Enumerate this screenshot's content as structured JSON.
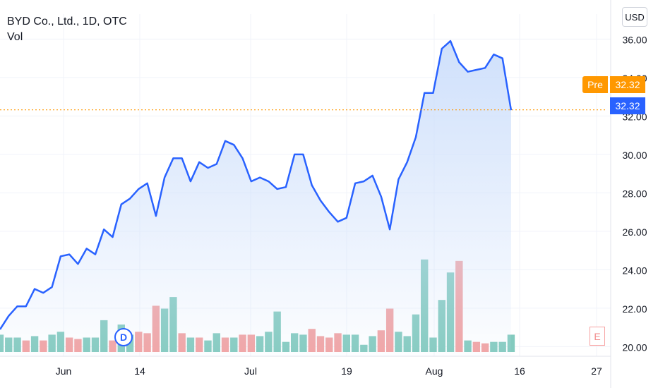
{
  "legend": {
    "title": "BYD Co., Ltd., 1D, OTC",
    "volume_label": "Vol"
  },
  "currency": "USD",
  "price_tags": {
    "pre_label": "Pre",
    "pre_value": "32.32",
    "last_value": "32.32"
  },
  "markers": {
    "dividend": "D",
    "earnings": "E"
  },
  "colors": {
    "line": "#2962ff",
    "area_top": "#cfe0fb",
    "vol_up": "#84cbbf",
    "vol_down": "#f2a3a3",
    "pre_line": "#ff9800",
    "grid": "#f0f3fa"
  },
  "chart_data": {
    "type": "area",
    "title": "BYD Co., Ltd., 1D, OTC",
    "y_axis": {
      "ticks": [
        "20.00",
        "22.00",
        "24.00",
        "26.00",
        "28.00",
        "30.00",
        "32.00",
        "34.00",
        "36.00"
      ],
      "range": [
        19.5,
        37.3
      ],
      "position": "right"
    },
    "x_axis": {
      "ticks": [
        "Jun",
        "14",
        "Jul",
        "19",
        "Aug",
        "16",
        "27"
      ]
    },
    "grid": true,
    "price_series": [
      20.9,
      21.6,
      22.1,
      22.1,
      23.0,
      22.8,
      23.1,
      24.7,
      24.8,
      24.3,
      25.1,
      24.8,
      26.1,
      25.7,
      27.4,
      27.7,
      28.2,
      28.5,
      26.8,
      28.8,
      29.8,
      29.8,
      28.6,
      29.6,
      29.3,
      29.5,
      30.7,
      30.5,
      29.8,
      28.6,
      28.8,
      28.6,
      28.2,
      28.3,
      30.0,
      30.0,
      28.4,
      27.6,
      27.0,
      26.5,
      26.7,
      28.5,
      28.6,
      28.9,
      27.8,
      26.1,
      28.7,
      29.6,
      30.9,
      33.2,
      33.2,
      35.5,
      35.9,
      34.8,
      34.3,
      34.4,
      34.5,
      35.2,
      35.0,
      32.3
    ],
    "volume_series": [
      {
        "v": 1.2,
        "up": true
      },
      {
        "v": 1.0,
        "up": true
      },
      {
        "v": 1.0,
        "up": true
      },
      {
        "v": 0.8,
        "up": false
      },
      {
        "v": 1.1,
        "up": true
      },
      {
        "v": 0.8,
        "up": false
      },
      {
        "v": 1.2,
        "up": true
      },
      {
        "v": 1.4,
        "up": true
      },
      {
        "v": 1.0,
        "up": false
      },
      {
        "v": 0.9,
        "up": false
      },
      {
        "v": 1.0,
        "up": true
      },
      {
        "v": 1.0,
        "up": true
      },
      {
        "v": 2.2,
        "up": true
      },
      {
        "v": 0.8,
        "up": false
      },
      {
        "v": 1.9,
        "up": true
      },
      {
        "v": 1.2,
        "up": true
      },
      {
        "v": 1.4,
        "up": false
      },
      {
        "v": 1.3,
        "up": false
      },
      {
        "v": 3.2,
        "up": false
      },
      {
        "v": 3.0,
        "up": true
      },
      {
        "v": 3.8,
        "up": true
      },
      {
        "v": 1.3,
        "up": false
      },
      {
        "v": 1.0,
        "up": true
      },
      {
        "v": 1.0,
        "up": false
      },
      {
        "v": 0.8,
        "up": true
      },
      {
        "v": 1.3,
        "up": true
      },
      {
        "v": 1.0,
        "up": false
      },
      {
        "v": 1.0,
        "up": true
      },
      {
        "v": 1.2,
        "up": false
      },
      {
        "v": 1.2,
        "up": false
      },
      {
        "v": 1.1,
        "up": true
      },
      {
        "v": 1.4,
        "up": true
      },
      {
        "v": 2.8,
        "up": true
      },
      {
        "v": 0.7,
        "up": true
      },
      {
        "v": 1.3,
        "up": true
      },
      {
        "v": 1.2,
        "up": true
      },
      {
        "v": 1.6,
        "up": false
      },
      {
        "v": 1.1,
        "up": false
      },
      {
        "v": 1.0,
        "up": false
      },
      {
        "v": 1.3,
        "up": false
      },
      {
        "v": 1.2,
        "up": true
      },
      {
        "v": 1.2,
        "up": true
      },
      {
        "v": 0.5,
        "up": true
      },
      {
        "v": 1.1,
        "up": true
      },
      {
        "v": 1.5,
        "up": false
      },
      {
        "v": 3.0,
        "up": false
      },
      {
        "v": 1.4,
        "up": true
      },
      {
        "v": 1.1,
        "up": true
      },
      {
        "v": 2.6,
        "up": true
      },
      {
        "v": 6.4,
        "up": true
      },
      {
        "v": 1.0,
        "up": true
      },
      {
        "v": 3.6,
        "up": true
      },
      {
        "v": 5.5,
        "up": true
      },
      {
        "v": 6.3,
        "up": false
      },
      {
        "v": 0.8,
        "up": true
      },
      {
        "v": 0.7,
        "up": false
      },
      {
        "v": 0.6,
        "up": false
      },
      {
        "v": 0.7,
        "up": true
      },
      {
        "v": 0.7,
        "up": true
      },
      {
        "v": 1.2,
        "up": true
      }
    ]
  }
}
